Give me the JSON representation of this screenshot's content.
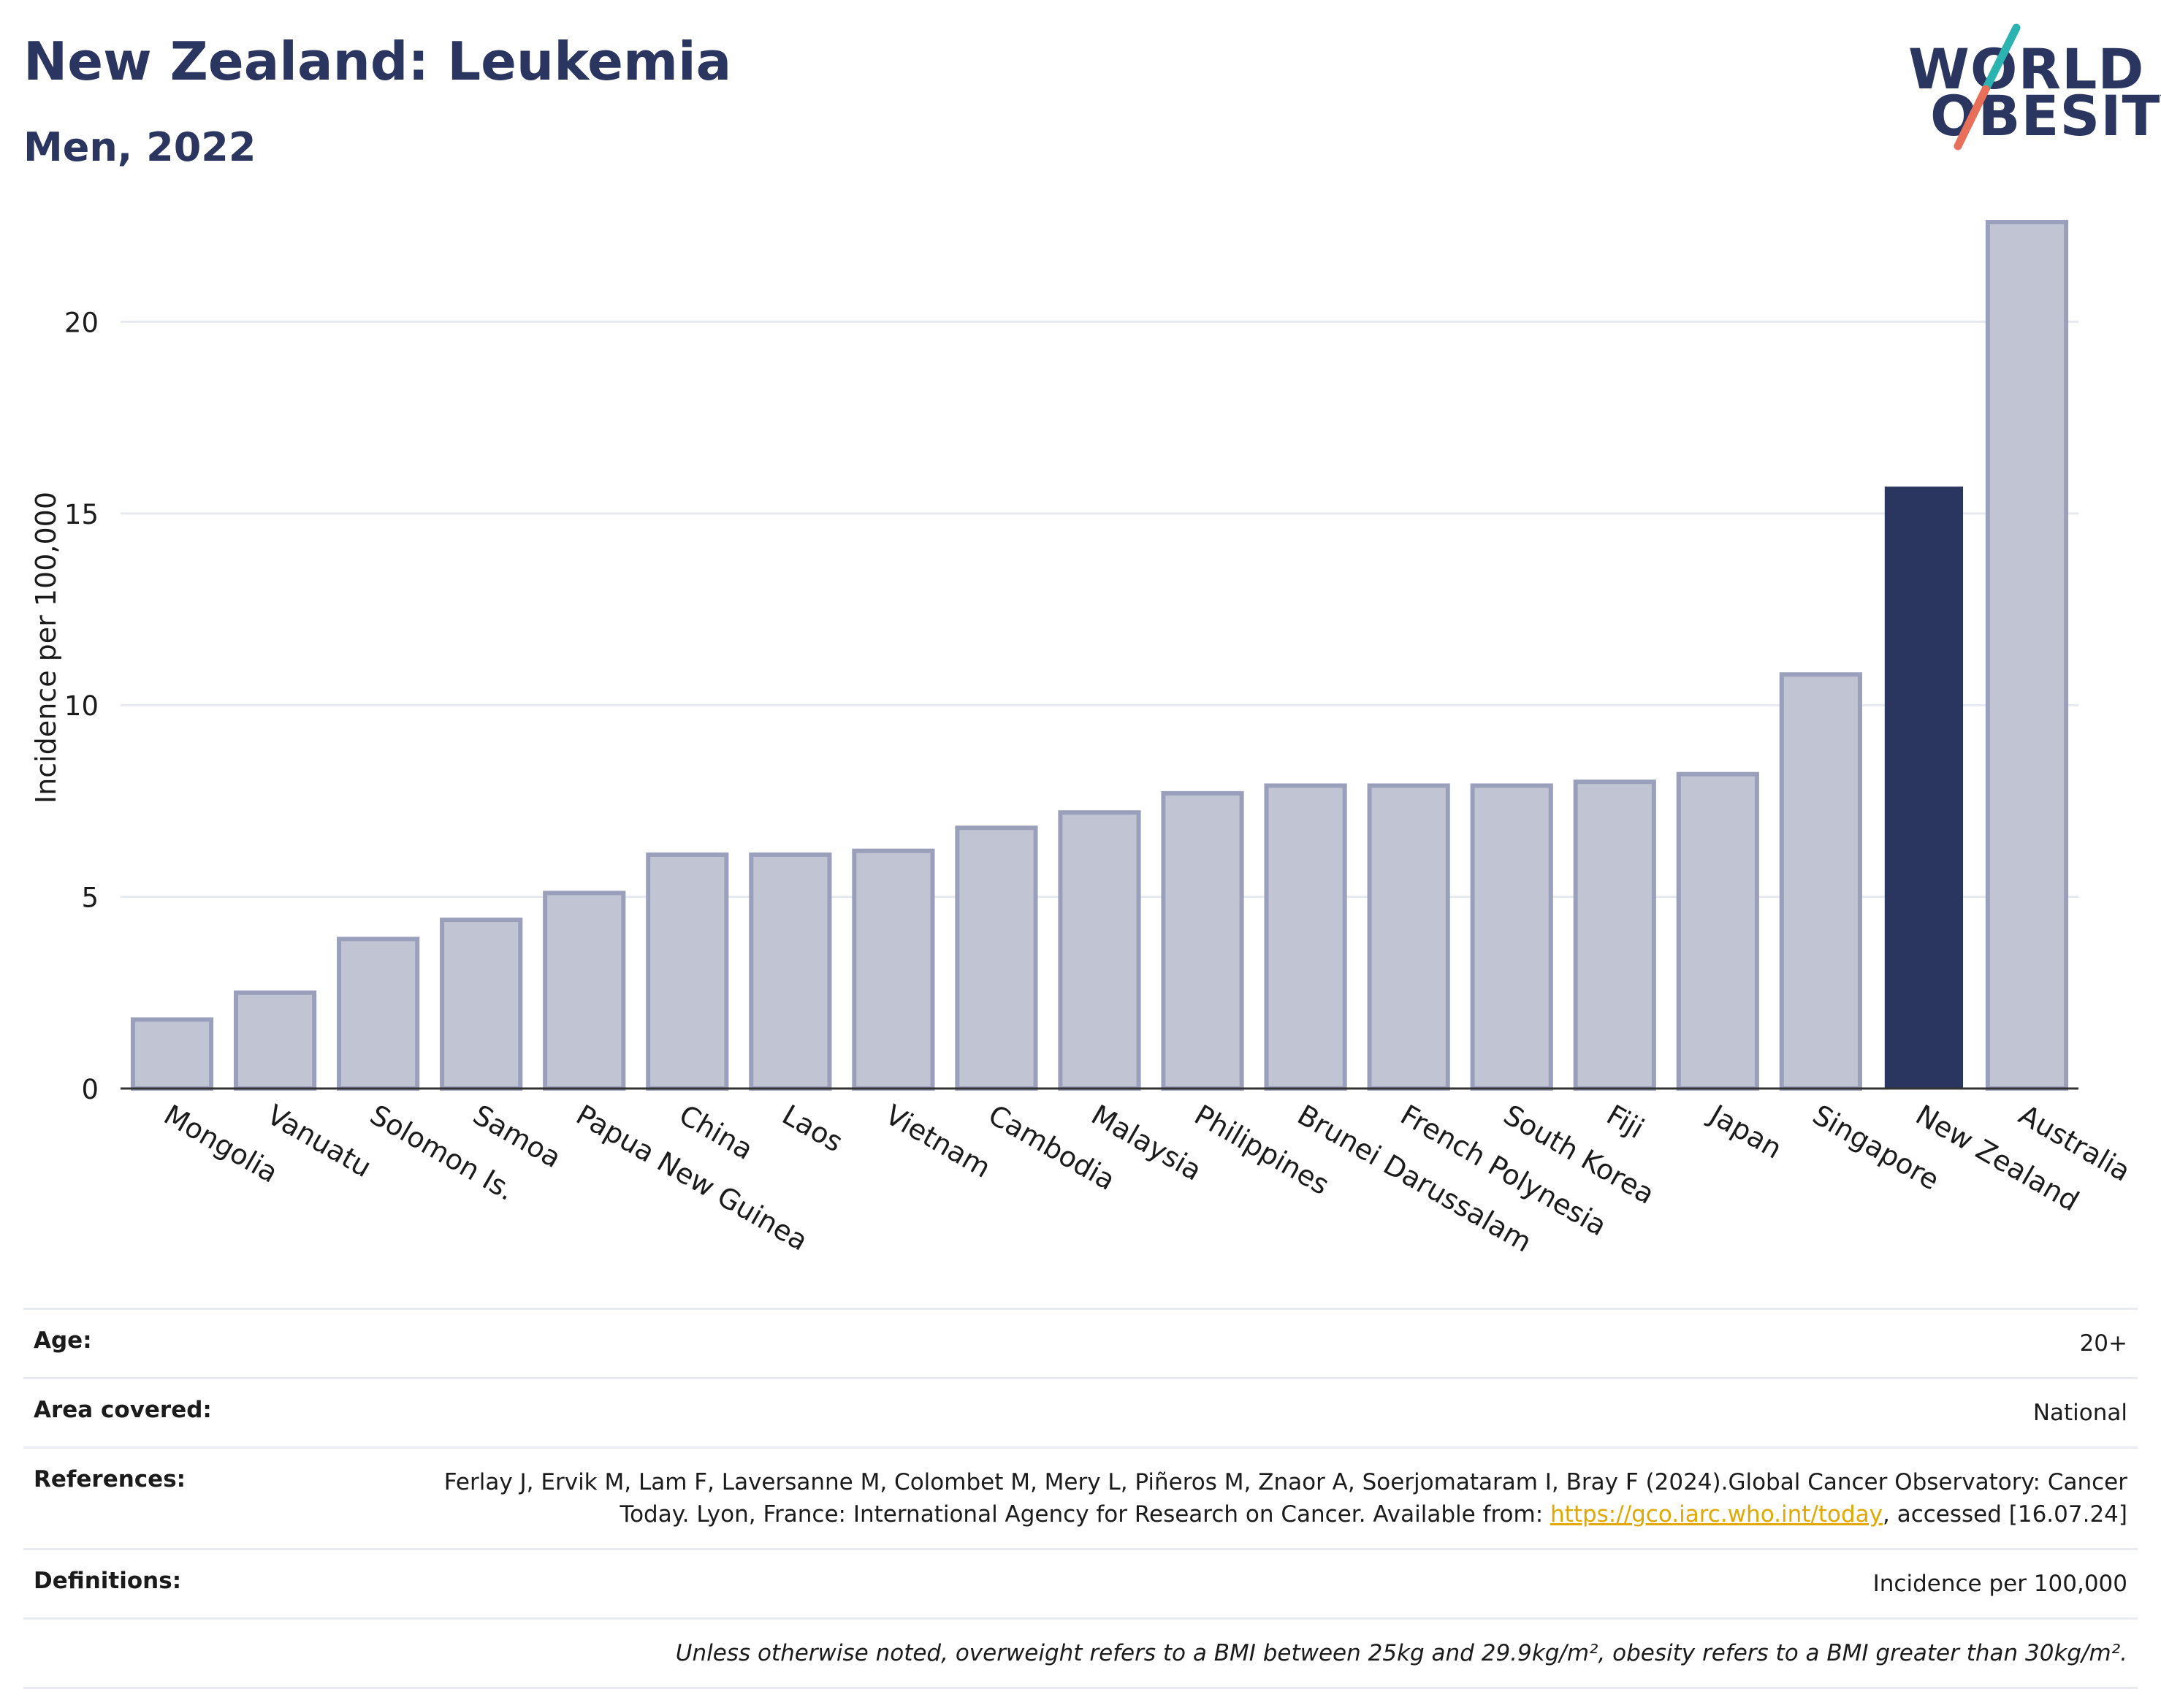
{
  "header": {
    "title": "New Zealand: Leukemia",
    "subtitle": "Men, 2022"
  },
  "logo": {
    "line1": "WORLD",
    "line2": "OBESITY"
  },
  "colors": {
    "highlight": "#2a3560",
    "bar_fill": "#c1c4d2",
    "bar_stroke": "#9aa0bb",
    "grid": "#e6e9f0",
    "logo_slash_top": "#2bb3b1",
    "logo_slash_bottom": "#e8705a"
  },
  "chart_data": {
    "type": "bar",
    "title": "",
    "xlabel": "",
    "ylabel": "Incidence per 100,000",
    "ylim": [
      0,
      23
    ],
    "yticks": [
      0,
      5,
      10,
      15,
      20
    ],
    "grid": true,
    "highlight": "New Zealand",
    "categories": [
      "Mongolia",
      "Vanuatu",
      "Solomon Is.",
      "Samoa",
      "Papua New Guinea",
      "China",
      "Laos",
      "Vietnam",
      "Cambodia",
      "Malaysia",
      "Philippines",
      "Brunei Darussalam",
      "French Polynesia",
      "South Korea",
      "Fiji",
      "Japan",
      "Singapore",
      "New Zealand",
      "Australia"
    ],
    "values": [
      1.8,
      2.5,
      3.9,
      4.4,
      5.1,
      6.1,
      6.1,
      6.2,
      6.8,
      7.2,
      7.7,
      7.9,
      7.9,
      7.9,
      8.0,
      8.2,
      10.8,
      15.7,
      22.6
    ]
  },
  "info": {
    "age": {
      "label": "Age:",
      "value": "20+"
    },
    "area": {
      "label": "Area covered:",
      "value": "National"
    },
    "references": {
      "label": "References:",
      "text_before": "Ferlay J, Ervik M, Lam F, Laversanne M, Colombet M, Mery L, Piñeros M, Znaor A, Soerjomataram I, Bray F (2024).Global Cancer Observatory: Cancer Today. Lyon, France: International Agency for Research on Cancer. Available from: ",
      "link": "https://gco.iarc.who.int/today",
      "text_after": ", accessed [16.07.24]"
    },
    "definitions": {
      "label": "Definitions:",
      "value": "Incidence per 100,000"
    },
    "note": "Unless otherwise noted, overweight refers to a BMI between 25kg and 29.9kg/m², obesity refers to a BMI greater than 30kg/m²."
  }
}
